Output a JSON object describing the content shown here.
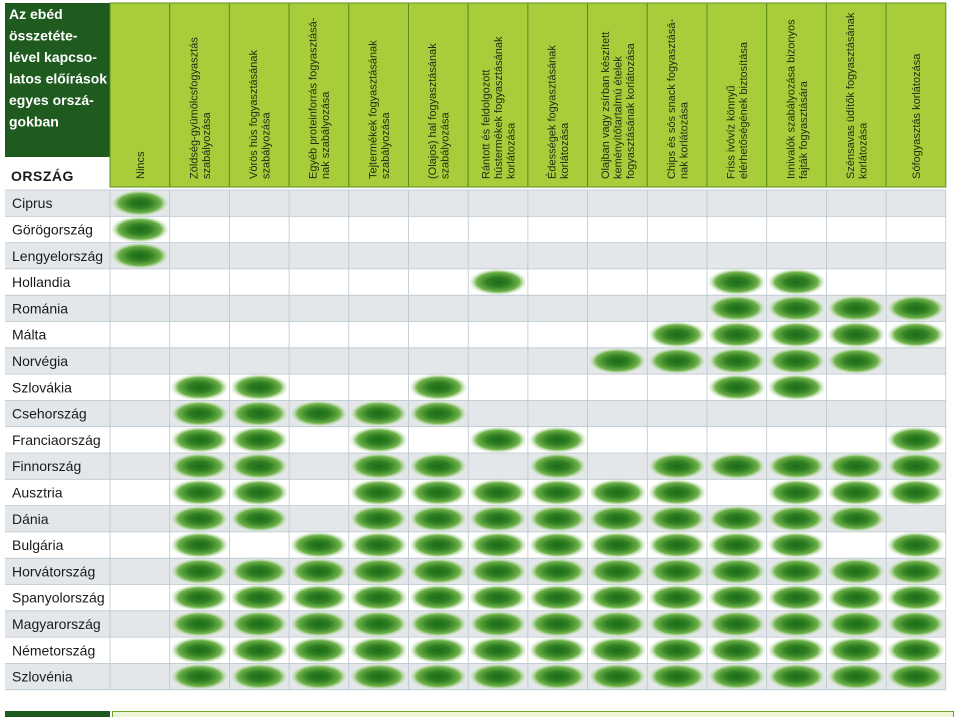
{
  "colors": {
    "header_dark": "#1f5a1f",
    "header_light": "#a8cd3a",
    "header_border": "#5d8f1e",
    "row_shade": "#e4e7ea",
    "row_white": "#ffffff",
    "grid": "#b9c6ce",
    "mark_dark": "#1e6b1a",
    "mark_mid": "#4f9a2e",
    "mark_light": "#b7dc7a"
  },
  "chart_data": {
    "type": "table",
    "title": "Az ebéd összetéte-lével kapcso-latos előírások egyes orszá-gokban",
    "title_lines": [
      "Az ebéd",
      "összetéte-",
      "lével kapcso-",
      "latos előírások",
      "egyes orszá-",
      "gokban"
    ],
    "row_header": "Ország",
    "columns": [
      {
        "label": "Nincs",
        "lines": [
          "Nincs"
        ]
      },
      {
        "label": "Zöldség-gyümölcsfogyasztás szabályozása",
        "lines": [
          "Zöldség-gyümölcsfogyasztás",
          "szabályozása"
        ]
      },
      {
        "label": "Vörös hús fogyasztásának szabályozása",
        "lines": [
          "Vörös hús fogyasztásának",
          "szabályozása"
        ]
      },
      {
        "label": "Egyéb proteinforrás fogyasztásá-nak szabályozása",
        "lines": [
          "Egyéb proteinforrás fogyasztásá-",
          "nak szabályozása"
        ]
      },
      {
        "label": "Tejtermékek fogyasztásának szabályozása",
        "lines": [
          "Tejtermékek fogyasztásának",
          "szabályozása"
        ]
      },
      {
        "label": "(Olajos) hal fogyasztásának szabályozása",
        "lines": [
          "(Olajos) hal fogyasztásának",
          "szabályozása"
        ]
      },
      {
        "label": "Rántott és feldolgozott hústermékek fogyasztásának korlátozása",
        "lines": [
          "Rántott és feldolgozott",
          "hústermékek fogyasztásának",
          "korlátozása"
        ]
      },
      {
        "label": "Édességek fogyasztásának korlátozása",
        "lines": [
          "Édességek fogyasztásának",
          "korlátozása"
        ]
      },
      {
        "label": "Olajban vagy zsírban készített keményítőtartalmú ételek fogyasztásának korlátozása",
        "lines": [
          "Olajban vagy zsírban készített",
          "keményítőtartalmú ételek",
          "fogyasztásának korlátozása"
        ]
      },
      {
        "label": "Chips és sós snack fogyasztásá-nak korlátozása",
        "lines": [
          "Chips és sós snack fogyasztásá-",
          "nak korlátozása"
        ]
      },
      {
        "label": "Friss ivóvíz könnyű elérhetőségének biztosítása",
        "lines": [
          "Friss ivóvíz könnyű",
          "elérhetőségének biztosítása"
        ]
      },
      {
        "label": "Innivalók szabályozása bizonyos fajták fogyasztására",
        "lines": [
          "Innivalók szabályozása bizonyos",
          "fajták fogyasztására"
        ]
      },
      {
        "label": "Szénsavas üdítők fogyasztásának korlátozása",
        "lines": [
          "Szénsavas üdítők fogyasztásának",
          "korlátozása"
        ]
      },
      {
        "label": "Sófogyasztás korlátozása",
        "lines": [
          "Sófogyasztás korlátozása"
        ]
      }
    ],
    "rows": [
      {
        "country": "Ciprus",
        "marks": [
          1,
          0,
          0,
          0,
          0,
          0,
          0,
          0,
          0,
          0,
          0,
          0,
          0,
          0
        ]
      },
      {
        "country": "Görögország",
        "marks": [
          1,
          0,
          0,
          0,
          0,
          0,
          0,
          0,
          0,
          0,
          0,
          0,
          0,
          0
        ]
      },
      {
        "country": "Lengyelország",
        "marks": [
          1,
          0,
          0,
          0,
          0,
          0,
          0,
          0,
          0,
          0,
          0,
          0,
          0,
          0
        ]
      },
      {
        "country": "Hollandia",
        "marks": [
          0,
          0,
          0,
          0,
          0,
          0,
          1,
          0,
          0,
          0,
          1,
          1,
          0,
          0
        ]
      },
      {
        "country": "Románia",
        "marks": [
          0,
          0,
          0,
          0,
          0,
          0,
          0,
          0,
          0,
          0,
          1,
          1,
          1,
          1
        ]
      },
      {
        "country": "Málta",
        "marks": [
          0,
          0,
          0,
          0,
          0,
          0,
          0,
          0,
          0,
          1,
          1,
          1,
          1,
          1
        ]
      },
      {
        "country": "Norvégia",
        "marks": [
          0,
          0,
          0,
          0,
          0,
          0,
          0,
          0,
          1,
          1,
          1,
          1,
          1,
          0
        ]
      },
      {
        "country": "Szlovákia",
        "marks": [
          0,
          1,
          1,
          0,
          0,
          1,
          0,
          0,
          0,
          0,
          1,
          1,
          0,
          0
        ]
      },
      {
        "country": "Csehország",
        "marks": [
          0,
          1,
          1,
          1,
          1,
          1,
          0,
          0,
          0,
          0,
          0,
          0,
          0,
          0
        ]
      },
      {
        "country": "Franciaország",
        "marks": [
          0,
          1,
          1,
          0,
          1,
          0,
          1,
          1,
          0,
          0,
          0,
          0,
          0,
          1
        ]
      },
      {
        "country": "Finnország",
        "marks": [
          0,
          1,
          1,
          0,
          1,
          1,
          0,
          1,
          0,
          1,
          1,
          1,
          1,
          1
        ]
      },
      {
        "country": "Ausztria",
        "marks": [
          0,
          1,
          1,
          0,
          1,
          1,
          1,
          1,
          1,
          1,
          0,
          1,
          1,
          1
        ]
      },
      {
        "country": "Dánia",
        "marks": [
          0,
          1,
          1,
          0,
          1,
          1,
          1,
          1,
          1,
          1,
          1,
          1,
          1,
          0
        ]
      },
      {
        "country": "Bulgária",
        "marks": [
          0,
          1,
          0,
          1,
          1,
          1,
          1,
          1,
          1,
          1,
          1,
          1,
          0,
          1
        ]
      },
      {
        "country": "Horvátország",
        "marks": [
          0,
          1,
          1,
          1,
          1,
          1,
          1,
          1,
          1,
          1,
          1,
          1,
          1,
          1
        ]
      },
      {
        "country": "Spanyolország",
        "marks": [
          0,
          1,
          1,
          1,
          1,
          1,
          1,
          1,
          1,
          1,
          1,
          1,
          1,
          1
        ]
      },
      {
        "country": "Magyarország",
        "marks": [
          0,
          1,
          1,
          1,
          1,
          1,
          1,
          1,
          1,
          1,
          1,
          1,
          1,
          1
        ]
      },
      {
        "country": "Németország",
        "marks": [
          0,
          1,
          1,
          1,
          1,
          1,
          1,
          1,
          1,
          1,
          1,
          1,
          1,
          1
        ]
      },
      {
        "country": "Szlovénia",
        "marks": [
          0,
          1,
          1,
          1,
          1,
          1,
          1,
          1,
          1,
          1,
          1,
          1,
          1,
          1
        ]
      }
    ]
  }
}
